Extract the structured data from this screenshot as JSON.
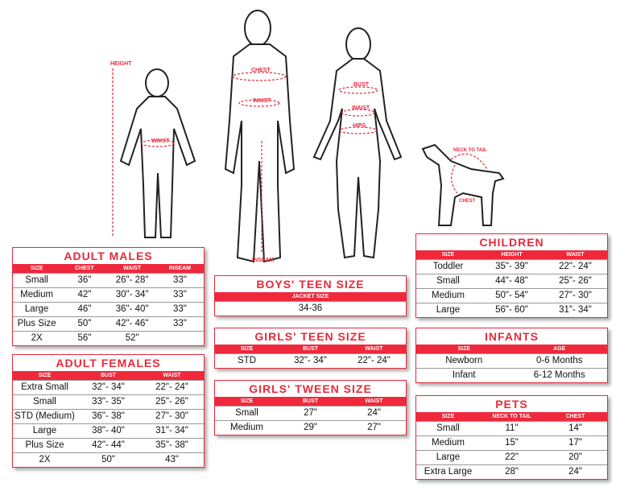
{
  "figures": {
    "height": "HEIGHT",
    "child_waist": "WAIST",
    "chest": "CHEST",
    "man_waist": "WAIST",
    "inseam": "INSEAM",
    "bust": "BUST",
    "woman_waist": "WAIST",
    "hips": "HIPS",
    "neck_to_tail": "NECK TO TAIL",
    "dog_chest": "CHEST"
  },
  "accent": "#e8293b",
  "tables": [
    {
      "id": "adult-males",
      "title": "ADULT MALES",
      "headers": [
        "SIZE",
        "CHEST",
        "WAIST",
        "INSEAM"
      ],
      "rows": [
        [
          "Small",
          "36\"",
          "26\"- 28\"",
          "33\""
        ],
        [
          "Medium",
          "42\"",
          "30\"- 34\"",
          "33\""
        ],
        [
          "Large",
          "46\"",
          "36\"- 40\"",
          "33\""
        ],
        [
          "Plus Size",
          "50\"",
          "42\"- 46\"",
          "33\""
        ],
        [
          "2X",
          "56\"",
          "52\"",
          ""
        ]
      ]
    },
    {
      "id": "adult-females",
      "title": "ADULT FEMALES",
      "headers": [
        "SIZE",
        "BUST",
        "WAIST"
      ],
      "rows": [
        [
          "Extra Small",
          "32\"- 34\"",
          "22\"- 24\""
        ],
        [
          "Small",
          "33\"- 35\"",
          "25\"- 26\""
        ],
        [
          "STD (Medium)",
          "36\"- 38\"",
          "27\"- 30\""
        ],
        [
          "Large",
          "38\"- 40\"",
          "31\"- 34\""
        ],
        [
          "Plus Size",
          "42\"- 44\"",
          "35\"- 38\""
        ],
        [
          "2X",
          "50\"",
          "43\""
        ]
      ]
    },
    {
      "id": "boys-teen",
      "title": "BOYS' TEEN SIZE",
      "headers": [
        "JACKET SIZE"
      ],
      "rows": [
        [
          "34-36"
        ]
      ]
    },
    {
      "id": "girls-teen",
      "title": "GIRLS' TEEN SIZE",
      "headers": [
        "SIZE",
        "BUST",
        "WAIST"
      ],
      "rows": [
        [
          "STD",
          "32\"- 34\"",
          "22\"- 24\""
        ]
      ]
    },
    {
      "id": "girls-tween",
      "title": "GIRLS' TWEEN SIZE",
      "headers": [
        "SIZE",
        "BUST",
        "WAIST"
      ],
      "rows": [
        [
          "Small",
          "27\"",
          "24\""
        ],
        [
          "Medium",
          "29\"",
          "27\""
        ]
      ]
    },
    {
      "id": "children",
      "title": "CHILDREN",
      "headers": [
        "SIZE",
        "HEIGHT",
        "WAIST"
      ],
      "rows": [
        [
          "Toddler",
          "35\"- 39\"",
          "22\"- 24\""
        ],
        [
          "Small",
          "44\"- 48\"",
          "25\"- 26\""
        ],
        [
          "Medium",
          "50\"- 54\"",
          "27\"- 30\""
        ],
        [
          "Large",
          "56\"- 60\"",
          "31\"- 34\""
        ]
      ]
    },
    {
      "id": "infants",
      "title": "INFANTS",
      "headers": [
        "SIZE",
        "AGE"
      ],
      "rows": [
        [
          "Newborn",
          "0-6 Months"
        ],
        [
          "Infant",
          "6-12 Months"
        ]
      ]
    },
    {
      "id": "pets",
      "title": "PETS",
      "headers": [
        "SIZE",
        "NECK TO TAIL",
        "CHEST"
      ],
      "rows": [
        [
          "Small",
          "11\"",
          "14\""
        ],
        [
          "Medium",
          "15\"",
          "17\""
        ],
        [
          "Large",
          "22\"",
          "20\""
        ],
        [
          "Extra Large",
          "28\"",
          "24\""
        ]
      ]
    }
  ]
}
